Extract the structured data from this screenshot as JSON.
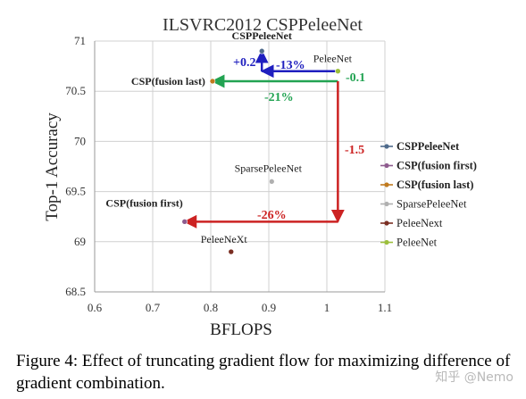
{
  "chart_data": {
    "type": "scatter",
    "title": "ILSVRC2012 CSPPeleeNet",
    "xlabel": "BFLOPS",
    "ylabel": "Top-1 Accuracy",
    "xlim": [
      0.6,
      1.1
    ],
    "ylim": [
      68.5,
      71
    ],
    "xticks": [
      "0.6",
      "0.7",
      "0.8",
      "0.9",
      "1",
      "1.1"
    ],
    "yticks": [
      "68.5",
      "69",
      "69.5",
      "70",
      "70.5",
      "71"
    ],
    "grid": true,
    "legend_position": "right",
    "series": [
      {
        "name": "CSPPeleeNet",
        "point_label": "CSPPeleeNet",
        "color": "#4f6b8c",
        "bold": true,
        "x": 0.888,
        "y": 70.9
      },
      {
        "name": "CSP(fusion first)",
        "point_label": "CSP(fusion first)",
        "color": "#8e5b8e",
        "bold": true,
        "x": 0.755,
        "y": 69.2
      },
      {
        "name": "CSP(fusion last)",
        "point_label": "CSP(fusion last)",
        "color": "#c07a1e",
        "bold": true,
        "x": 0.803,
        "y": 70.6
      },
      {
        "name": "SparsePeleeNet",
        "point_label": "SparsePeleeNet",
        "color": "#b0b0b0",
        "bold": false,
        "x": 0.905,
        "y": 69.6
      },
      {
        "name": "PeleeNext",
        "point_label": "PeleeNeXt",
        "color": "#7a2e22",
        "bold": false,
        "x": 0.835,
        "y": 68.9
      },
      {
        "name": "PeleeNet",
        "point_label": "PeleeNet",
        "color": "#9cbf3c",
        "bold": false,
        "x": 1.019,
        "y": 70.7
      }
    ],
    "annotations": [
      {
        "text": "+0.2",
        "color": "#1f1fbf"
      },
      {
        "text": "-13%",
        "color": "#1f1fbf"
      },
      {
        "text": "-0.1",
        "color": "#22a352"
      },
      {
        "text": "-21%",
        "color": "#22a352"
      },
      {
        "text": "-1.5",
        "color": "#cc2222"
      },
      {
        "text": "-26%",
        "color": "#cc2222"
      }
    ],
    "arrows": [
      {
        "from": [
          1.019,
          70.7
        ],
        "to": [
          0.888,
          70.7
        ],
        "color": "#1f1fbf"
      },
      {
        "from": [
          0.888,
          70.7
        ],
        "to": [
          0.888,
          70.9
        ],
        "color": "#1f1fbf"
      },
      {
        "from": [
          1.019,
          70.6
        ],
        "to": [
          0.803,
          70.6
        ],
        "color": "#22a352"
      },
      {
        "from": [
          1.019,
          70.6
        ],
        "to": [
          1.019,
          69.2
        ],
        "color": "#cc2222"
      },
      {
        "from": [
          1.019,
          69.2
        ],
        "to": [
          0.755,
          69.2
        ],
        "color": "#cc2222"
      }
    ]
  },
  "caption": "Figure 4: Effect of truncating gradient flow for maximizing difference of gradient combination.",
  "watermark": "知乎 @Nemo"
}
